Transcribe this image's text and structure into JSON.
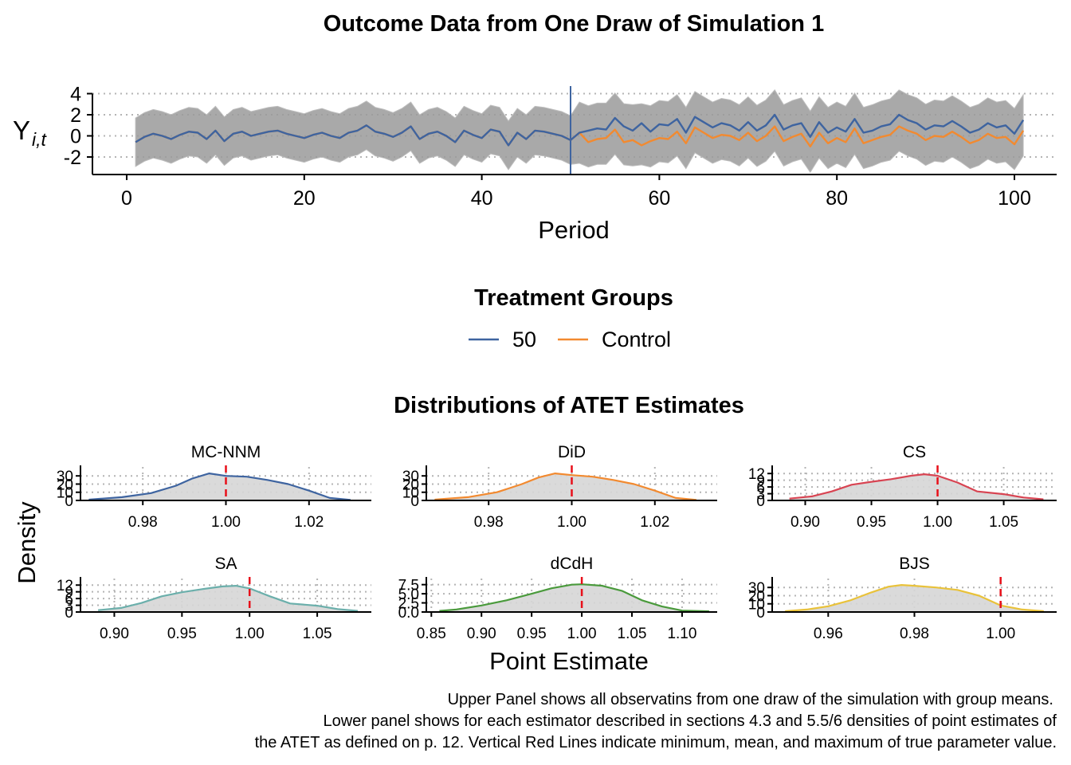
{
  "chart_data": [
    {
      "type": "line",
      "title": "Outcome Data from One Draw of Simulation 1",
      "xlabel": "Period",
      "ylabel_main": "Y",
      "ylabel_sub": "i,t",
      "xlim": [
        0,
        100
      ],
      "ylim": [
        -3.5,
        4.4
      ],
      "x_ticks": [
        "0",
        "20",
        "40",
        "60",
        "80",
        "100"
      ],
      "y_ticks": [
        "-2",
        "0",
        "2",
        "4"
      ],
      "y_tick_values": [
        -2,
        0,
        2,
        4
      ],
      "treatment_period": 50,
      "legend_title": "Treatment Groups",
      "series": [
        {
          "name": "50",
          "color": "#3E64A0",
          "values": [
            -0.6,
            -0.1,
            0.2,
            0.0,
            -0.3,
            0.1,
            0.4,
            0.3,
            -0.3,
            0.5,
            -0.5,
            0.2,
            0.4,
            0.0,
            0.2,
            0.4,
            0.5,
            0.2,
            0.0,
            -0.2,
            0.1,
            0.3,
            0.0,
            -0.2,
            0.3,
            0.5,
            1.0,
            0.4,
            0.2,
            -0.1,
            0.3,
            0.9,
            -0.3,
            0.2,
            0.4,
            0.0,
            -0.6,
            0.5,
            0.1,
            -0.2,
            0.6,
            0.4,
            -0.9,
            0.3,
            -0.3,
            0.5,
            0.4,
            0.2,
            0.0,
            -0.4,
            0.3,
            0.5,
            0.7,
            0.6,
            1.7,
            0.9,
            0.5,
            1.2,
            0.4,
            1.1,
            1.0,
            1.6,
            0.3,
            1.8,
            1.3,
            0.8,
            1.2,
            1.0,
            0.5,
            1.3,
            0.5,
            1.0,
            2.0,
            0.6,
            1.0,
            1.2,
            -0.1,
            1.3,
            0.3,
            0.8,
            0.4,
            1.6,
            0.3,
            0.5,
            0.9,
            1.1,
            2.0,
            1.5,
            1.2,
            0.6,
            1.0,
            0.9,
            1.4,
            0.9,
            0.3,
            0.6,
            1.2,
            0.8,
            1.0,
            0.2,
            1.5
          ]
        },
        {
          "name": "Control",
          "color": "#F28A30",
          "values": [
            -0.6,
            -0.1,
            0.2,
            0.0,
            -0.3,
            0.1,
            0.4,
            0.3,
            -0.3,
            0.5,
            -0.5,
            0.2,
            0.4,
            0.0,
            0.2,
            0.4,
            0.5,
            0.2,
            0.0,
            -0.2,
            0.1,
            0.3,
            0.0,
            -0.2,
            0.3,
            0.5,
            1.0,
            0.4,
            0.2,
            -0.1,
            0.3,
            0.9,
            -0.3,
            0.2,
            0.4,
            0.0,
            -0.6,
            0.5,
            0.1,
            -0.2,
            0.6,
            0.4,
            -0.9,
            0.3,
            -0.3,
            0.5,
            0.4,
            0.2,
            0.0,
            -0.4,
            0.3,
            -0.6,
            -0.3,
            -0.2,
            0.6,
            -0.6,
            -0.4,
            -0.9,
            -0.5,
            -0.2,
            -0.3,
            0.4,
            -0.7,
            0.8,
            0.3,
            -0.2,
            0.1,
            0.0,
            -0.4,
            0.3,
            -0.5,
            0.0,
            0.9,
            -0.5,
            -0.1,
            0.2,
            -1.0,
            0.3,
            -0.7,
            -0.2,
            -0.6,
            0.7,
            -0.7,
            -0.4,
            -0.1,
            0.1,
            0.9,
            0.5,
            0.2,
            -0.4,
            0.0,
            -0.1,
            0.4,
            -0.1,
            -0.7,
            -0.4,
            0.2,
            -0.2,
            -0.1,
            -0.8,
            0.5
          ]
        }
      ]
    },
    {
      "type": "area",
      "title": "Distributions of ATET Estimates",
      "xlabel": "Point Estimate",
      "ylabel": "Density",
      "panels": [
        {
          "name": "MC-NNM",
          "color": "#3E64A0",
          "xlim": [
            0.965,
            1.035
          ],
          "x_ticks": [
            "0.98",
            "1.00",
            "1.02"
          ],
          "x_tick_values": [
            0.98,
            1.0,
            1.02
          ],
          "ymax": 37,
          "y_ticks": [
            "0",
            "10",
            "20",
            "30"
          ],
          "y_tick_values": [
            0,
            10,
            20,
            30
          ],
          "x": [
            0.967,
            0.975,
            0.982,
            0.988,
            0.992,
            0.996,
            1.0,
            1.005,
            1.01,
            1.015,
            1.02,
            1.025,
            1.03
          ],
          "y": [
            1,
            4,
            9,
            18,
            27,
            33,
            30,
            29,
            25,
            20,
            12,
            3,
            0.6
          ],
          "ref_lines": [
            1.0
          ]
        },
        {
          "name": "DiD",
          "color": "#F28A30",
          "xlim": [
            0.965,
            1.035
          ],
          "x_ticks": [
            "0.98",
            "1.00",
            "1.02"
          ],
          "x_tick_values": [
            0.98,
            1.0,
            1.02
          ],
          "ymax": 37,
          "y_ticks": [
            "0",
            "10",
            "20",
            "30"
          ],
          "y_tick_values": [
            0,
            10,
            20,
            30
          ],
          "x": [
            0.967,
            0.975,
            0.982,
            0.988,
            0.992,
            0.996,
            1.0,
            1.005,
            1.01,
            1.015,
            1.02,
            1.025,
            1.03
          ],
          "y": [
            1,
            4,
            10,
            20,
            28,
            33,
            31,
            29,
            25,
            20,
            12,
            3,
            0.6
          ],
          "ref_lines": [
            1.0
          ]
        },
        {
          "name": "CS",
          "color": "#D84452",
          "xlim": [
            0.875,
            1.09
          ],
          "x_ticks": [
            "0.90",
            "0.95",
            "1.00",
            "1.05"
          ],
          "x_tick_values": [
            0.9,
            0.95,
            1.0,
            1.05
          ],
          "ymax": 13.5,
          "y_ticks": [
            "0",
            "3",
            "6",
            "9",
            "12"
          ],
          "y_tick_values": [
            0,
            3,
            6,
            9,
            12
          ],
          "x": [
            0.888,
            0.905,
            0.92,
            0.935,
            0.95,
            0.965,
            0.98,
            0.99,
            1.0,
            1.015,
            1.03,
            1.05,
            1.065,
            1.08
          ],
          "y": [
            0.8,
            1.8,
            4,
            7,
            8.3,
            9.5,
            11,
            11.7,
            11,
            8,
            4,
            2.8,
            1.3,
            0.5
          ],
          "ref_lines": [
            1.0
          ]
        },
        {
          "name": "SA",
          "color": "#6BAFAB",
          "xlim": [
            0.875,
            1.09
          ],
          "x_ticks": [
            "0.90",
            "0.95",
            "1.00",
            "1.05"
          ],
          "x_tick_values": [
            0.9,
            0.95,
            1.0,
            1.05
          ],
          "ymax": 13.5,
          "y_ticks": [
            "0",
            "3",
            "6",
            "9",
            "12"
          ],
          "y_tick_values": [
            0,
            3,
            6,
            9,
            12
          ],
          "x": [
            0.888,
            0.905,
            0.92,
            0.935,
            0.95,
            0.965,
            0.98,
            0.99,
            1.0,
            1.015,
            1.03,
            1.05,
            1.065,
            1.08
          ],
          "y": [
            0.8,
            1.8,
            4,
            7,
            8.8,
            10.2,
            11.4,
            11.7,
            10.5,
            7,
            3.8,
            2.8,
            1.3,
            0.5
          ],
          "ref_lines": [
            1.0
          ]
        },
        {
          "name": "dCdH",
          "color": "#4A9A3C",
          "xlim": [
            0.845,
            1.135
          ],
          "x_ticks": [
            "0.85",
            "0.90",
            "0.95",
            "1.00",
            "1.05",
            "1.10"
          ],
          "x_tick_values": [
            0.85,
            0.9,
            0.95,
            1.0,
            1.05,
            1.1
          ],
          "ymax": 8.3,
          "y_ticks": [
            "0.0",
            "2.5",
            "5.0",
            "7.5"
          ],
          "y_tick_values": [
            0,
            2.5,
            5,
            7.5
          ],
          "x": [
            0.858,
            0.875,
            0.9,
            0.925,
            0.95,
            0.97,
            0.99,
            1.0,
            1.02,
            1.04,
            1.06,
            1.08,
            1.1,
            1.127
          ],
          "y": [
            0.3,
            0.7,
            1.8,
            3.2,
            5,
            6.5,
            7.5,
            7.6,
            7.2,
            5.8,
            3.2,
            1.5,
            0.4,
            0.2
          ],
          "ref_lines": [
            1.0
          ]
        },
        {
          "name": "BJS",
          "color": "#E9C23A",
          "xlim": [
            0.947,
            1.013
          ],
          "x_ticks": [
            "0.96",
            "0.98",
            "1.00"
          ],
          "x_tick_values": [
            0.96,
            0.98,
            1.0
          ],
          "ymax": 37,
          "y_ticks": [
            "0",
            "10",
            "20",
            "30"
          ],
          "y_tick_values": [
            0,
            10,
            20,
            30
          ],
          "x": [
            0.95,
            0.955,
            0.96,
            0.965,
            0.97,
            0.974,
            0.977,
            0.98,
            0.985,
            0.99,
            0.995,
            1.0,
            1.005,
            1.01
          ],
          "y": [
            1,
            3,
            7,
            14,
            24,
            31,
            33,
            32,
            30,
            27,
            20,
            8,
            3,
            1
          ],
          "ref_lines": [
            1.0
          ]
        }
      ]
    }
  ],
  "caption": [
    "Upper Panel shows all observatins from one draw of the simulation with group means.",
    "Lower panel shows for each estimator described in sections 4.3 and 5.5/6 densities of point estimates of",
    "the ATET as defined on p. 12. Vertical Red Lines indicate minimum, mean, and maximum of true parameter value."
  ],
  "colors": {
    "treated": "#3E64A0",
    "control": "#F28A30",
    "ref_line": "#E8101A",
    "noise": "#9A9A9A",
    "density_fill": "#D6D6D6",
    "grid": "#B4B4B4"
  }
}
